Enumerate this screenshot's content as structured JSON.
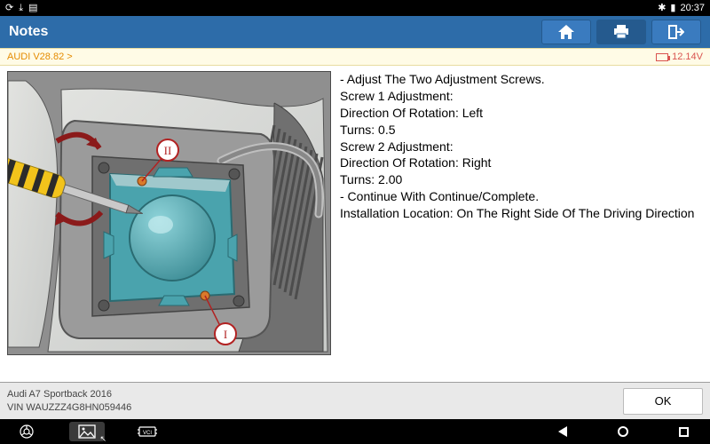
{
  "statusbar": {
    "left_icons": [
      "⟳",
      "⤓",
      "▤"
    ],
    "right_icons": [
      "✱",
      "▮"
    ],
    "time": "20:37"
  },
  "header": {
    "title": "Notes"
  },
  "infostrip": {
    "breadcrumb": "AUDI V28.82 >",
    "voltage": "12.14V"
  },
  "diagram": {
    "markers": {
      "one": "I",
      "two": "II"
    },
    "colors": {
      "panel": "#c8cac8",
      "panel_dark": "#8f8f8f",
      "module_body": "#4aa3ad",
      "module_top": "#a0c8cc",
      "module_dome": "#3b8b94",
      "screwdriver_handle": "#f2c31b",
      "screwdriver_grip": "#2b2b2b",
      "arrow": "#8b1a1a",
      "bracket_grey": "#6f6f6f",
      "marker_ring": "#b22222",
      "marker_fill": "#ffffff",
      "screw": "#d97a2b",
      "cable": "#bfbfbf"
    }
  },
  "instructions": {
    "lines": [
      "- Adjust The Two Adjustment Screws.",
      "Screw 1 Adjustment:",
      "Direction Of Rotation: Left",
      "Turns: 0.5",
      "Screw 2 Adjustment:",
      "Direction Of Rotation: Right",
      "Turns: 2.00",
      "- Continue With Continue/Complete.",
      "Installation Location: On The Right Side Of The Driving Direction"
    ]
  },
  "footer": {
    "vehicle": "Audi A7 Sportback 2016",
    "vin": "VIN WAUZZZ4G8HN059446",
    "ok_label": "OK"
  },
  "navbar": {
    "app_badge": "VCI"
  }
}
